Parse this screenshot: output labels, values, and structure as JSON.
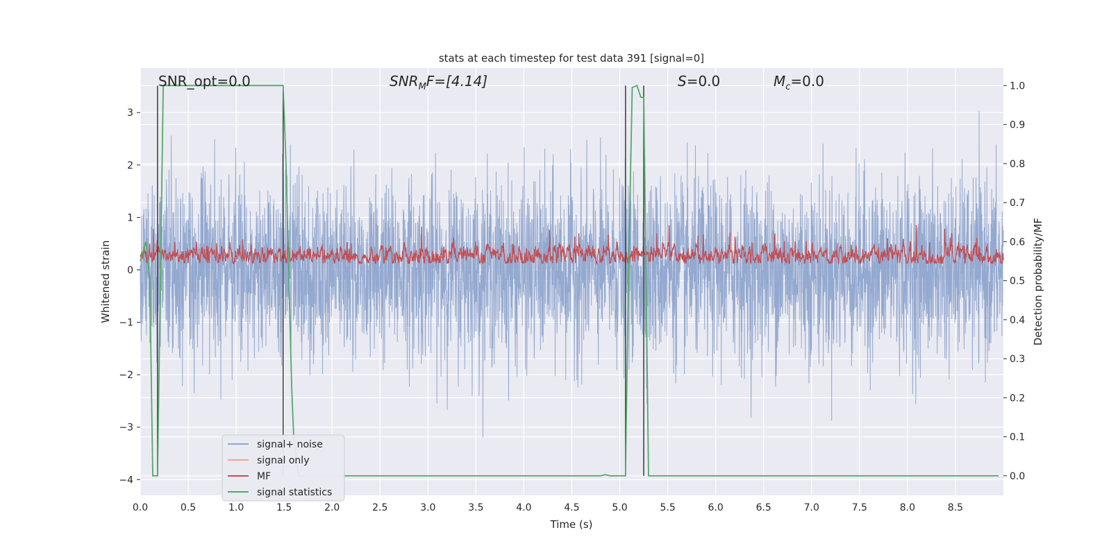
{
  "chart_data": {
    "type": "line",
    "title": "stats at each timestep for test data 391 [signal=0]",
    "xlabel": "Time (s)",
    "ylabel_left": "Whitened strain",
    "ylabel_right": "Detection probability/MF",
    "xlim": [
      0.0,
      9.0
    ],
    "ylim_left": [
      -4.3,
      3.85
    ],
    "ylim_right": [
      -0.05,
      1.045
    ],
    "x_ticks": [
      "0.0",
      "0.5",
      "1.0",
      "1.5",
      "2.0",
      "2.5",
      "3.0",
      "3.5",
      "4.0",
      "4.5",
      "5.0",
      "5.5",
      "6.0",
      "6.5",
      "7.0",
      "7.5",
      "8.0",
      "8.5"
    ],
    "y_ticks_left": [
      "−4",
      "−3",
      "−2",
      "−1",
      "0",
      "1",
      "2",
      "3"
    ],
    "y_ticks_right": [
      "0.0",
      "0.1",
      "0.2",
      "0.3",
      "0.4",
      "0.5",
      "0.6",
      "0.7",
      "0.8",
      "0.9",
      "1.0"
    ],
    "grid": true,
    "legend_position": "lower-left",
    "annotations": {
      "snr_opt": "SNR_opt=0.0",
      "snr_mf_main": "SNR",
      "snr_mf_sub": "M",
      "snr_mf_rest": "F=[4.14]",
      "s_main": "S",
      "s_rest": "=0.0",
      "mc_main": "M",
      "mc_sub": "c",
      "mc_rest": "=0.0"
    },
    "series": [
      {
        "name": "signal+ noise",
        "color": "#8fa5cd",
        "axis": "left",
        "description_values": {
          "mean": 0.0,
          "std": 0.85,
          "duration_s": 9.0
        }
      },
      {
        "name": "signal only",
        "color": "#f0a58a",
        "axis": "left",
        "values": []
      },
      {
        "name": "MF",
        "color": "#c44e52",
        "axis": "right",
        "description_values": {
          "baseline": 0.565,
          "range": [
            0.545,
            0.665
          ]
        }
      },
      {
        "name": "signal statistics",
        "color": "#55a868",
        "axis": "right",
        "points": [
          [
            0.0,
            0.55
          ],
          [
            0.06,
            0.6
          ],
          [
            0.1,
            0.5
          ],
          [
            0.13,
            0.0
          ],
          [
            0.18,
            0.0
          ],
          [
            0.24,
            1.0
          ],
          [
            0.27,
            1.0
          ],
          [
            1.49,
            1.0
          ],
          [
            1.52,
            0.8
          ],
          [
            1.56,
            0.4
          ],
          [
            1.58,
            0.22
          ],
          [
            1.6,
            0.1
          ],
          [
            1.65,
            0.0
          ],
          [
            4.8,
            0.0
          ],
          [
            4.85,
            0.003
          ],
          [
            4.9,
            0.0
          ],
          [
            5.06,
            0.0
          ],
          [
            5.09,
            0.5
          ],
          [
            5.13,
            0.995
          ],
          [
            5.18,
            1.0
          ],
          [
            5.22,
            0.97
          ],
          [
            5.25,
            0.97
          ],
          [
            5.3,
            0.0
          ],
          [
            8.95,
            0.0
          ]
        ]
      }
    ],
    "vertical_markers_s": [
      0.18,
      1.49,
      5.06,
      5.25
    ]
  }
}
